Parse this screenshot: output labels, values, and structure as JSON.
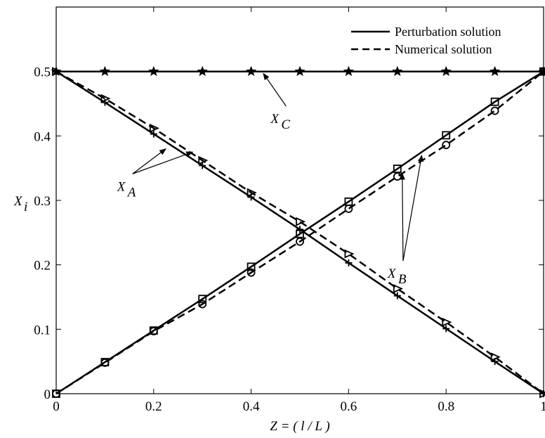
{
  "chart_data": {
    "type": "line",
    "xlabel": "Z = ( l / L )",
    "ylabel": "X_i",
    "xlim": [
      0,
      1
    ],
    "ylim": [
      0,
      0.6
    ],
    "x_ticks": [
      "0",
      "0.2",
      "0.4",
      "0.6",
      "0.8",
      "1"
    ],
    "y_ticks": [
      "0",
      "0.1",
      "0.2",
      "0.3",
      "0.4",
      "0.5"
    ],
    "legend": {
      "position": "top-right",
      "entries": [
        {
          "label": "Perturbation solution",
          "style": "solid"
        },
        {
          "label": "Numerical solution",
          "style": "dashed"
        }
      ]
    },
    "x": [
      0,
      0.1,
      0.2,
      0.3,
      0.4,
      0.5,
      0.6,
      0.7,
      0.8,
      0.9,
      1.0
    ],
    "series": [
      {
        "id": "XA_pert",
        "style": "solid",
        "marker": "plus",
        "values": [
          0.5,
          0.452,
          0.403,
          0.354,
          0.305,
          0.255,
          0.203,
          0.152,
          0.101,
          0.05,
          0
        ]
      },
      {
        "id": "XA_num",
        "style": "dashed",
        "marker": "triangle-right",
        "values": [
          0.5,
          0.458,
          0.412,
          0.362,
          0.312,
          0.267,
          0.217,
          0.163,
          0.111,
          0.057,
          0
        ]
      },
      {
        "id": "XB_pert",
        "style": "solid",
        "marker": "square",
        "values": [
          0,
          0.049,
          0.098,
          0.147,
          0.197,
          0.248,
          0.298,
          0.349,
          0.401,
          0.453,
          0.5
        ]
      },
      {
        "id": "XB_num",
        "style": "dashed",
        "marker": "circle",
        "values": [
          0,
          0.048,
          0.097,
          0.139,
          0.188,
          0.236,
          0.287,
          0.337,
          0.386,
          0.439,
          0.5
        ]
      },
      {
        "id": "XC",
        "style": "solid",
        "marker": "star",
        "values": [
          0.5,
          0.5,
          0.5,
          0.5,
          0.5,
          0.5,
          0.5,
          0.5,
          0.5,
          0.5,
          0.5
        ]
      }
    ],
    "annotations": [
      {
        "text": "X",
        "sub": "C",
        "label_at": [
          0.44,
          0.42
        ],
        "arrow_to": [
          [
            0.425,
            0.497
          ]
        ]
      },
      {
        "text": "X",
        "sub": "A",
        "label_at": [
          0.125,
          0.315
        ],
        "arrow_to": [
          [
            0.225,
            0.38
          ],
          [
            0.28,
            0.375
          ]
        ]
      },
      {
        "text": "X",
        "sub": "B",
        "label_at": [
          0.68,
          0.18
        ],
        "arrow_to": [
          [
            0.71,
            0.342
          ],
          [
            0.75,
            0.37
          ]
        ]
      }
    ]
  }
}
